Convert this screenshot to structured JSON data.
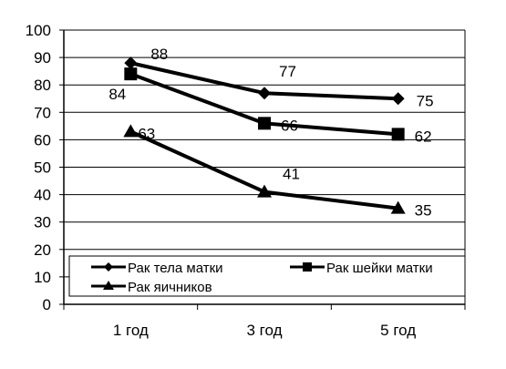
{
  "chart_data": {
    "type": "line",
    "title": "",
    "xlabel": "",
    "ylabel": "",
    "categories": [
      "1 год",
      "3 год",
      "5 год"
    ],
    "ylim": [
      0,
      100
    ],
    "yticks": [
      0,
      10,
      20,
      30,
      40,
      50,
      60,
      70,
      80,
      90,
      100
    ],
    "grid": true,
    "legend_position": "bottom-inside",
    "series": [
      {
        "name": "Рак тела матки",
        "values": [
          88,
          77,
          75
        ],
        "marker": "diamond"
      },
      {
        "name": "Рак шейки матки",
        "values": [
          84,
          66,
          62
        ],
        "marker": "square"
      },
      {
        "name": "Рак яичников",
        "values": [
          63,
          41,
          35
        ],
        "marker": "triangle"
      }
    ],
    "data_labels": [
      [
        "88",
        "77",
        "75"
      ],
      [
        "84",
        "66",
        "62"
      ],
      [
        "63",
        "41",
        "35"
      ]
    ],
    "colors": {
      "line": "#000000",
      "grid": "#000000",
      "background": "#ffffff"
    }
  }
}
